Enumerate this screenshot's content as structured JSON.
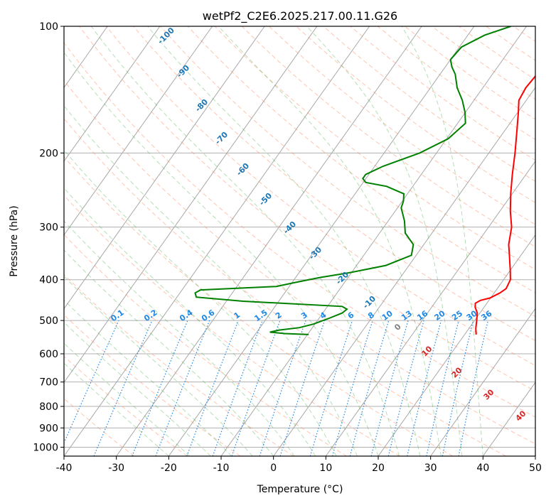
{
  "chart_data": {
    "type": "line",
    "title": "wetPf2_C2E6.2025.217.00.11.G26",
    "xlabel": "Temperature (°C)",
    "ylabel": "Pressure (hPa)",
    "xlim": [
      -40,
      50
    ],
    "ylim": [
      1050,
      100
    ],
    "y_scale": "log",
    "grid": true,
    "x_ticks": [
      -40,
      -30,
      -20,
      -10,
      0,
      10,
      20,
      30,
      40,
      50
    ],
    "y_ticks": [
      100,
      200,
      300,
      400,
      500,
      600,
      700,
      800,
      900,
      1000
    ],
    "skew": "skew-T log-p",
    "colors": {
      "temperature": "#ff0000",
      "dewpoint": "#008000",
      "dry_adiabat": "#ff7f50",
      "moist_adiabat": "#2ca02c",
      "mixing_ratio": "#1e88e5",
      "isotherm": "#808080",
      "label_dry": "#1f77b4",
      "label_mixing": "#1e88e5",
      "label_hot": "#d62728"
    },
    "series": [
      {
        "name": "",
        "color": "#ff0000",
        "points": [
          [
            540,
            22.2
          ],
          [
            522,
            21.3
          ],
          [
            500,
            20.4
          ],
          [
            480,
            19.5
          ],
          [
            465,
            18.3
          ],
          [
            455,
            17.8
          ],
          [
            448,
            18.4
          ],
          [
            442,
            19.9
          ],
          [
            430,
            21.1
          ],
          [
            420,
            21.7
          ],
          [
            400,
            21.3
          ],
          [
            380,
            20.0
          ],
          [
            350,
            17.8
          ],
          [
            330,
            16.2
          ],
          [
            300,
            14.4
          ],
          [
            275,
            12.0
          ],
          [
            250,
            9.7
          ],
          [
            225,
            7.4
          ],
          [
            200,
            5.0
          ],
          [
            180,
            2.7
          ],
          [
            160,
            0.1
          ],
          [
            150,
            -1.4
          ],
          [
            140,
            -1.8
          ],
          [
            130,
            -1.5
          ],
          [
            120,
            -1.2
          ],
          [
            110,
            -1.5
          ],
          [
            100,
            -2.8
          ]
        ]
      },
      {
        "name": "",
        "color": "#008000",
        "points": [
          [
            540,
            -9.8
          ],
          [
            537,
            -14.5
          ],
          [
            533,
            -17.5
          ],
          [
            527,
            -16.0
          ],
          [
            520,
            -12.5
          ],
          [
            510,
            -10.3
          ],
          [
            495,
            -8.2
          ],
          [
            480,
            -6.3
          ],
          [
            470,
            -5.9
          ],
          [
            463,
            -7.2
          ],
          [
            450,
            -26.8
          ],
          [
            440,
            -36.3
          ],
          [
            430,
            -37.1
          ],
          [
            423,
            -36.5
          ],
          [
            415,
            -22.5
          ],
          [
            405,
            -19.0
          ],
          [
            395,
            -15.3
          ],
          [
            385,
            -10.4
          ],
          [
            370,
            -4.4
          ],
          [
            350,
            -0.9
          ],
          [
            330,
            -2.0
          ],
          [
            310,
            -5.1
          ],
          [
            290,
            -6.9
          ],
          [
            270,
            -9.3
          ],
          [
            260,
            -9.8
          ],
          [
            250,
            -10.7
          ],
          [
            240,
            -15.0
          ],
          [
            235,
            -19.5
          ],
          [
            230,
            -20.6
          ],
          [
            225,
            -20.6
          ],
          [
            215,
            -18.4
          ],
          [
            200,
            -13.2
          ],
          [
            185,
            -9.7
          ],
          [
            170,
            -8.5
          ],
          [
            160,
            -10.1
          ],
          [
            150,
            -12.2
          ],
          [
            140,
            -14.9
          ],
          [
            130,
            -17.1
          ],
          [
            125,
            -18.7
          ],
          [
            120,
            -20.0
          ],
          [
            112,
            -19.6
          ],
          [
            105,
            -16.8
          ],
          [
            100,
            -13.0
          ]
        ]
      }
    ],
    "dry_adiabat_labels": [
      "-100",
      "-90",
      "-80",
      "-70",
      "-60",
      "-50",
      "-40",
      "-30",
      "-20",
      "-10",
      "0",
      "10",
      "20",
      "30",
      "40"
    ],
    "mixing_ratio_labels": [
      "0.1",
      "0.2",
      "0.4",
      "0.6",
      "1",
      "1.5",
      "2",
      "3",
      "4",
      "6",
      "8",
      "10",
      "13",
      "16",
      "20",
      "25",
      "30",
      "36"
    ]
  }
}
